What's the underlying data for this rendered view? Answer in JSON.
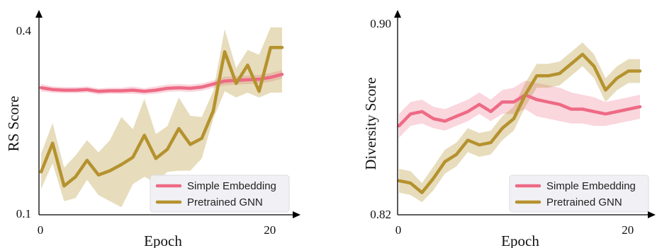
{
  "chart_data": [
    {
      "type": "line",
      "ylabel": "RS Score",
      "xlabel": "Epoch",
      "x": [
        0,
        1,
        2,
        3,
        4,
        5,
        6,
        7,
        8,
        9,
        10,
        11,
        12,
        13,
        14,
        15,
        16,
        17,
        18,
        19,
        20,
        21
      ],
      "xlim": [
        0,
        21
      ],
      "ylim": [
        0.1,
        0.4
      ],
      "x_ticks": [
        {
          "value": 0,
          "label": "0"
        },
        {
          "value": 20,
          "label": "20"
        }
      ],
      "y_ticks": [
        {
          "value": 0.1,
          "label": "0.1"
        },
        {
          "value": 0.4,
          "label": "0.4"
        }
      ],
      "legend_position": "lower-right",
      "grid": false,
      "series": [
        {
          "name": "Simple Embedding",
          "color": "#EE6A85",
          "values": [
            0.306,
            0.303,
            0.302,
            0.302,
            0.303,
            0.3,
            0.301,
            0.301,
            0.302,
            0.3,
            0.302,
            0.305,
            0.306,
            0.305,
            0.307,
            0.312,
            0.317,
            0.318,
            0.319,
            0.32,
            0.323,
            0.328
          ],
          "lower": [
            0.3,
            0.298,
            0.297,
            0.297,
            0.298,
            0.295,
            0.296,
            0.296,
            0.296,
            0.295,
            0.296,
            0.299,
            0.3,
            0.299,
            0.301,
            0.306,
            0.31,
            0.311,
            0.312,
            0.313,
            0.316,
            0.321
          ],
          "upper": [
            0.312,
            0.308,
            0.307,
            0.307,
            0.308,
            0.305,
            0.306,
            0.306,
            0.308,
            0.305,
            0.308,
            0.311,
            0.312,
            0.311,
            0.313,
            0.318,
            0.324,
            0.325,
            0.326,
            0.327,
            0.33,
            0.335
          ]
        },
        {
          "name": "Pretrained GNN",
          "color": "#B5922E",
          "values": [
            0.168,
            0.215,
            0.145,
            0.16,
            0.187,
            0.163,
            0.17,
            0.18,
            0.192,
            0.228,
            0.19,
            0.205,
            0.239,
            0.213,
            0.223,
            0.268,
            0.365,
            0.313,
            0.343,
            0.3,
            0.372,
            0.372
          ],
          "lower": [
            0.14,
            0.182,
            0.12,
            0.125,
            0.155,
            0.13,
            0.12,
            0.11,
            0.148,
            0.16,
            0.15,
            0.168,
            0.17,
            0.17,
            0.19,
            0.255,
            0.3,
            0.29,
            0.298,
            0.29,
            0.298,
            0.298
          ],
          "upper": [
            0.198,
            0.248,
            0.175,
            0.195,
            0.22,
            0.2,
            0.22,
            0.258,
            0.238,
            0.288,
            0.23,
            0.243,
            0.29,
            0.26,
            0.258,
            0.3,
            0.402,
            0.338,
            0.368,
            0.36,
            0.405,
            0.405
          ]
        }
      ]
    },
    {
      "type": "line",
      "ylabel": "Diversity Score",
      "xlabel": "Epoch",
      "x": [
        0,
        1,
        2,
        3,
        4,
        5,
        6,
        7,
        8,
        9,
        10,
        11,
        12,
        13,
        14,
        15,
        16,
        17,
        18,
        19,
        20,
        21
      ],
      "xlim": [
        0,
        21
      ],
      "ylim": [
        0.82,
        0.9
      ],
      "x_ticks": [
        {
          "value": 0,
          "label": "0"
        },
        {
          "value": 20,
          "label": "20"
        }
      ],
      "y_ticks": [
        {
          "value": 0.82,
          "label": "0.82"
        },
        {
          "value": 0.9,
          "label": "0.90"
        }
      ],
      "legend_position": "lower-right",
      "grid": false,
      "series": [
        {
          "name": "Simple Embedding",
          "color": "#EE6A85",
          "values": [
            0.857,
            0.862,
            0.863,
            0.86,
            0.859,
            0.861,
            0.863,
            0.866,
            0.863,
            0.867,
            0.867,
            0.87,
            0.868,
            0.867,
            0.866,
            0.864,
            0.864,
            0.863,
            0.862,
            0.863,
            0.864,
            0.865
          ],
          "lower": [
            0.852,
            0.857,
            0.858,
            0.856,
            0.855,
            0.857,
            0.859,
            0.862,
            0.859,
            0.862,
            0.862,
            0.864,
            0.861,
            0.86,
            0.859,
            0.858,
            0.858,
            0.857,
            0.857,
            0.858,
            0.859,
            0.86
          ],
          "upper": [
            0.862,
            0.867,
            0.868,
            0.865,
            0.864,
            0.866,
            0.868,
            0.871,
            0.868,
            0.872,
            0.873,
            0.876,
            0.875,
            0.874,
            0.873,
            0.871,
            0.87,
            0.869,
            0.867,
            0.868,
            0.869,
            0.87
          ]
        },
        {
          "name": "Pretrained GNN",
          "color": "#B5922E",
          "values": [
            0.834,
            0.833,
            0.829,
            0.835,
            0.842,
            0.845,
            0.851,
            0.849,
            0.85,
            0.856,
            0.86,
            0.87,
            0.878,
            0.878,
            0.879,
            0.883,
            0.887,
            0.882,
            0.872,
            0.877,
            0.88,
            0.88
          ],
          "lower": [
            0.829,
            0.828,
            0.825,
            0.83,
            0.837,
            0.84,
            0.846,
            0.844,
            0.845,
            0.851,
            0.855,
            0.865,
            0.873,
            0.873,
            0.874,
            0.878,
            0.882,
            0.877,
            0.867,
            0.872,
            0.875,
            0.875
          ],
          "upper": [
            0.839,
            0.838,
            0.833,
            0.84,
            0.847,
            0.85,
            0.856,
            0.854,
            0.855,
            0.861,
            0.865,
            0.875,
            0.883,
            0.883,
            0.884,
            0.888,
            0.892,
            0.887,
            0.877,
            0.882,
            0.885,
            0.885
          ]
        }
      ]
    }
  ]
}
